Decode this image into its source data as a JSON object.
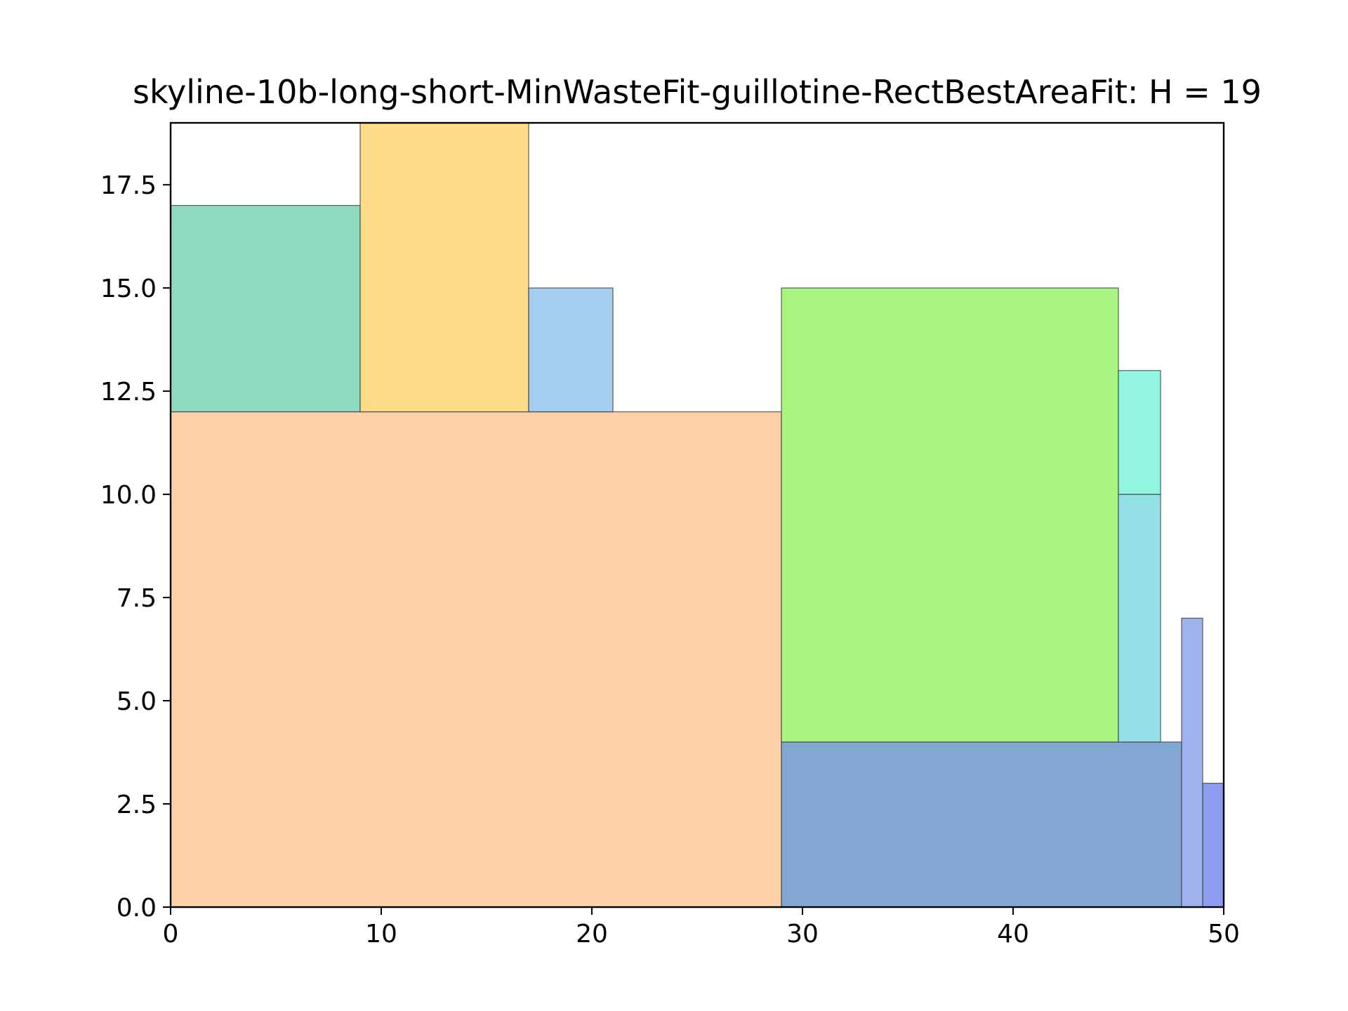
{
  "chart_data": {
    "type": "rectangle-packing",
    "title": "skyline-10b-long-short-MinWasteFit-guillotine-RectBestAreaFit: H = 19",
    "xlim": [
      0,
      50
    ],
    "ylim": [
      0,
      19
    ],
    "xticks": [
      "0",
      "10",
      "20",
      "30",
      "40",
      "50"
    ],
    "xtick_values": [
      0,
      10,
      20,
      30,
      40,
      50
    ],
    "yticks": [
      "0.0",
      "2.5",
      "5.0",
      "7.5",
      "10.0",
      "12.5",
      "15.0",
      "17.5"
    ],
    "ytick_values": [
      0,
      2.5,
      5,
      7.5,
      10,
      12.5,
      15,
      17.5
    ],
    "grid": false,
    "rectangles": [
      {
        "x": 0,
        "y": 0,
        "w": 29,
        "h": 12,
        "color": "#FDD0A6"
      },
      {
        "x": 0,
        "y": 12,
        "w": 9,
        "h": 5,
        "color": "#8FD9C3"
      },
      {
        "x": 9,
        "y": 12,
        "w": 8,
        "h": 7,
        "color": "#FCDC88"
      },
      {
        "x": 17,
        "y": 12,
        "w": 4,
        "h": 3,
        "color": "#A3CEF0"
      },
      {
        "x": 29,
        "y": 0,
        "w": 19,
        "h": 4,
        "color": "#82A7D3"
      },
      {
        "x": 29,
        "y": 4,
        "w": 16,
        "h": 11,
        "color": "#A8F582"
      },
      {
        "x": 45,
        "y": 4,
        "w": 2,
        "h": 6,
        "color": "#93E0E6"
      },
      {
        "x": 45,
        "y": 10,
        "w": 2,
        "h": 3,
        "color": "#91F5E0"
      },
      {
        "x": 48,
        "y": 0,
        "w": 1,
        "h": 7,
        "color": "#9EB2ED"
      },
      {
        "x": 49,
        "y": 0,
        "w": 1,
        "h": 3,
        "color": "#8E9CF0"
      }
    ]
  }
}
